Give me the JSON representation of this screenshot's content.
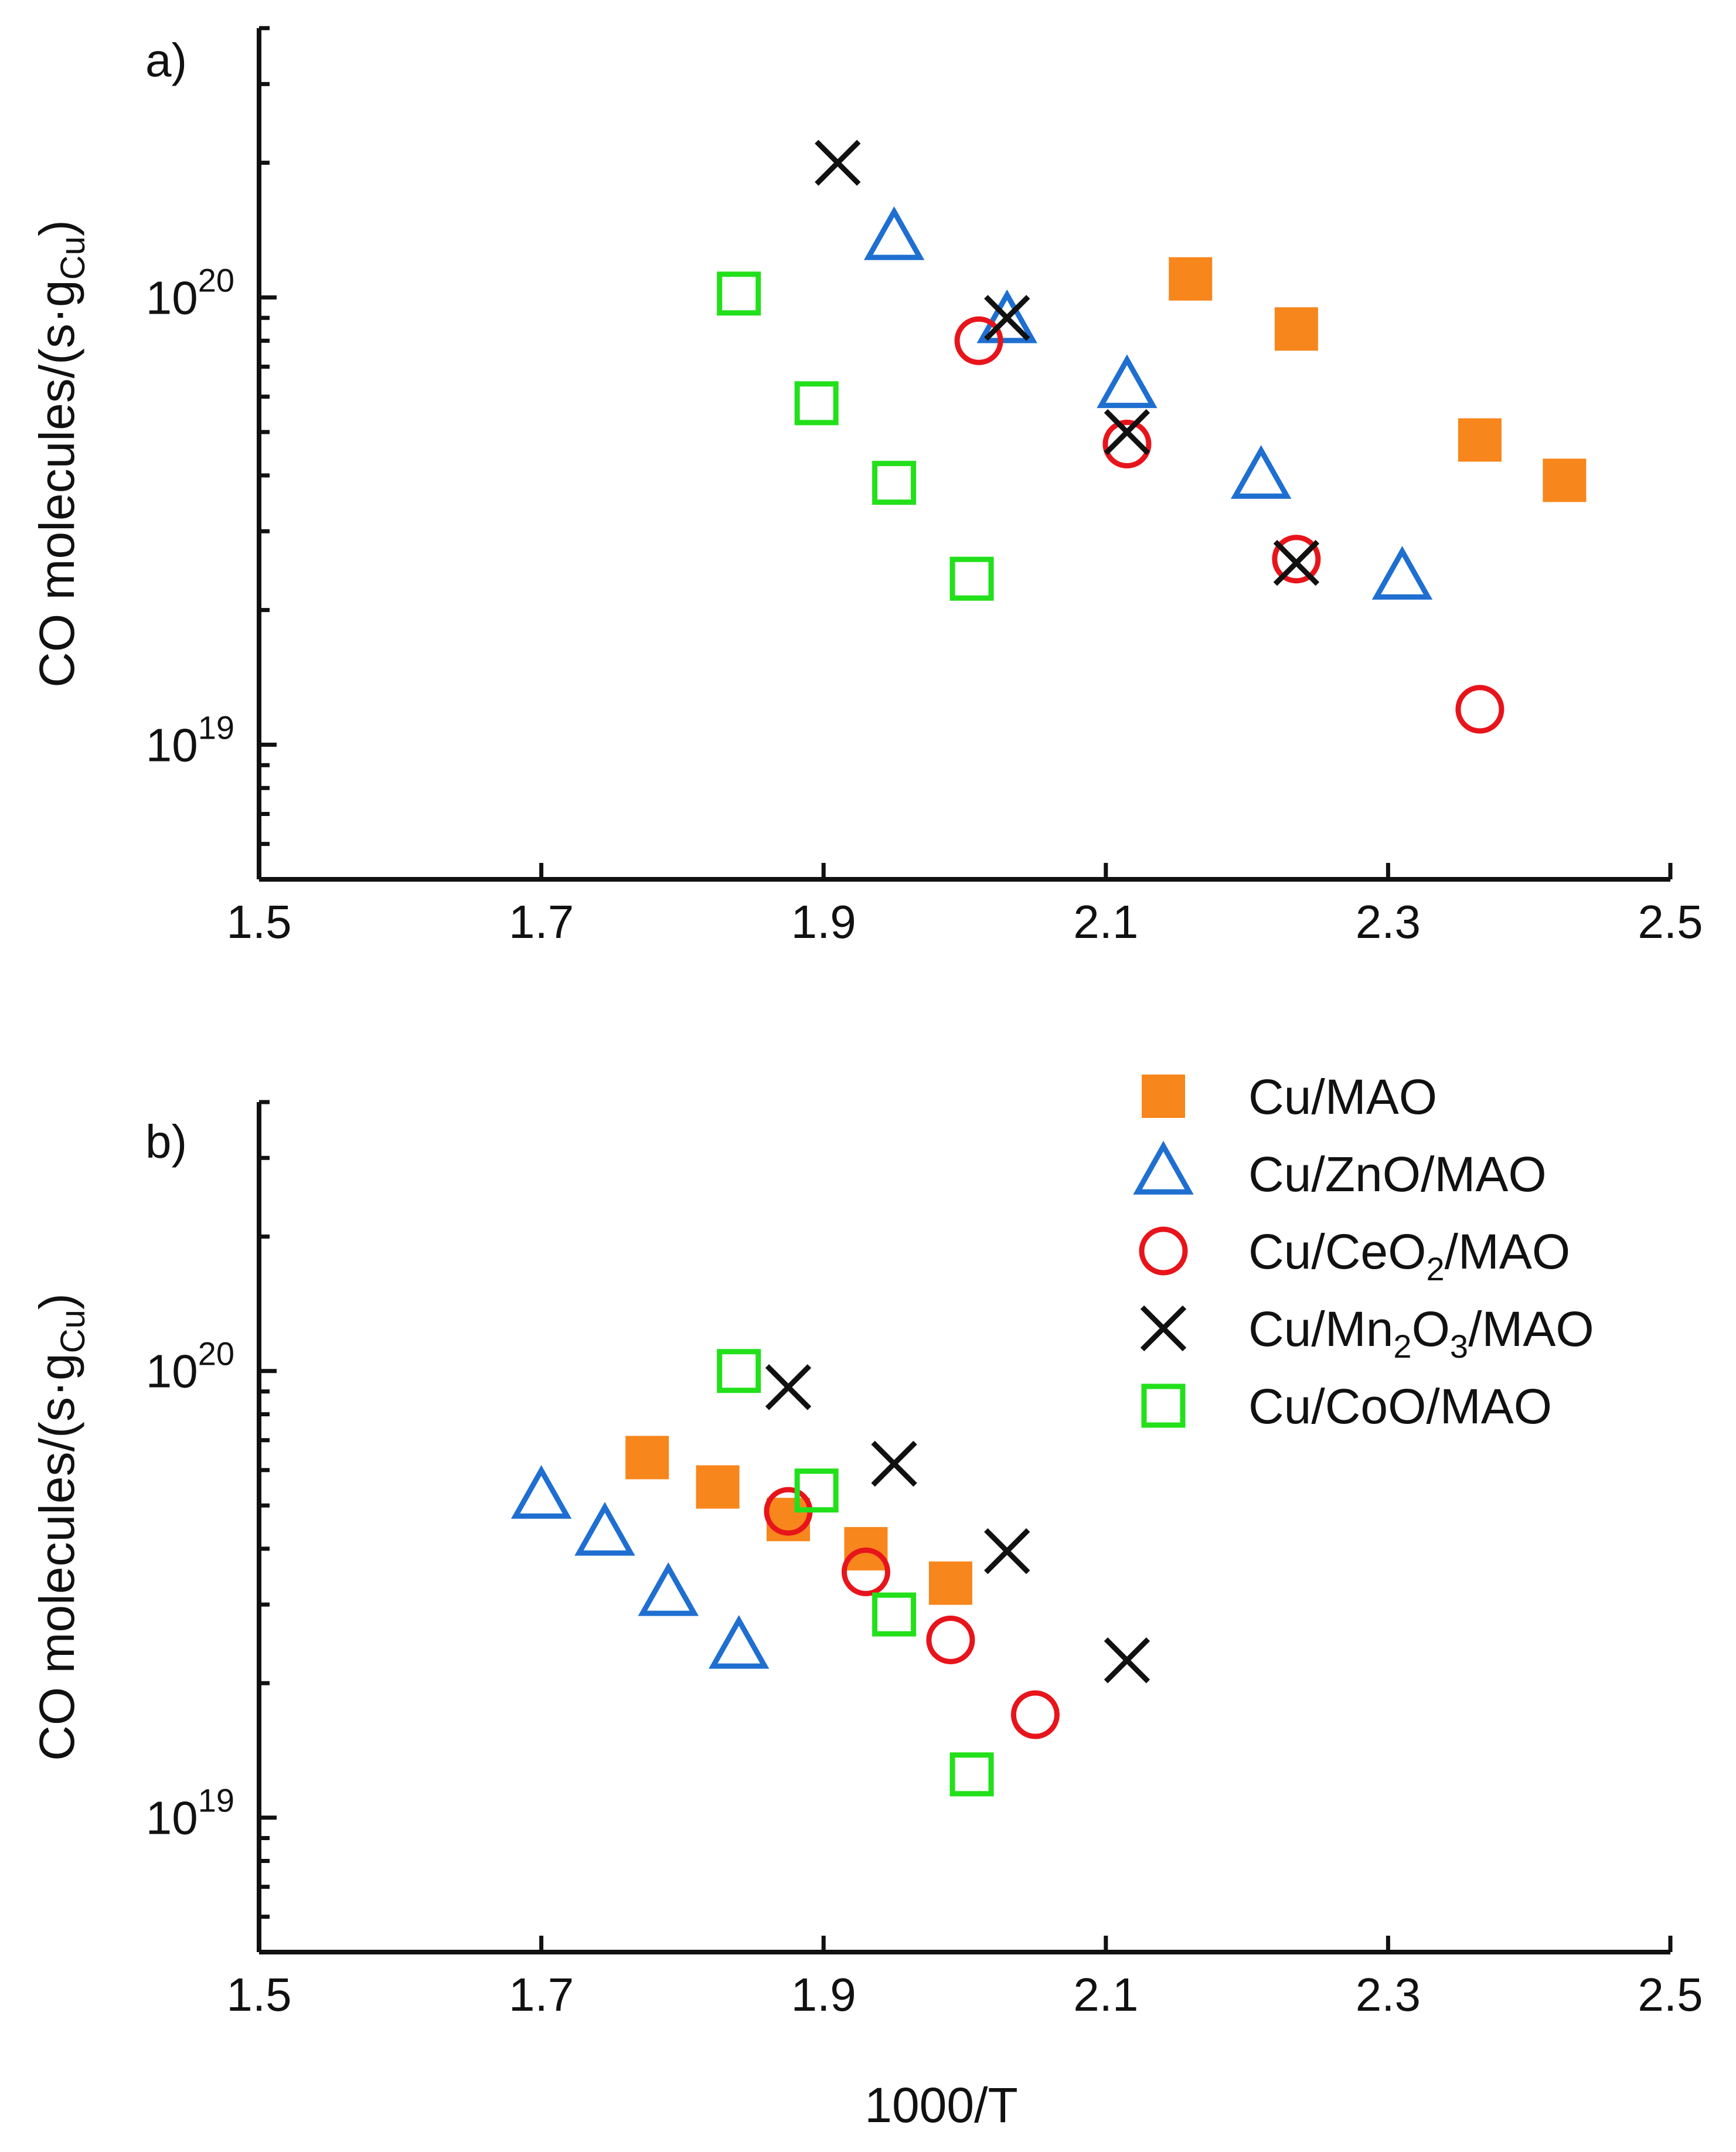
{
  "chart_data": [
    {
      "type": "scatter",
      "panel_label": "a)",
      "ylabel": "CO molecules/(s·g",
      "ylabel_sub": "Cu",
      "ylabel_close": ")",
      "xlabel": "",
      "yscale": "log",
      "xlim": [
        1.5,
        2.5
      ],
      "ylim": [
        5e+18,
        4e+20
      ],
      "x_ticks": [
        1.5,
        1.7,
        1.9,
        2.1,
        2.3,
        2.5
      ],
      "x_tick_labels": [
        "1.5",
        "1.7",
        "1.9",
        "2.1",
        "2.3",
        "2.5"
      ],
      "y_major_ticks": [
        {
          "value": 1e+19,
          "base": "10",
          "exp": "19"
        },
        {
          "value": 1e+20,
          "base": "10",
          "exp": "20"
        }
      ],
      "series": [
        {
          "name": "Cu/MAO",
          "marker": "filled-square",
          "color": "#f7861c",
          "points": [
            [
              2.16,
              1.1e+20
            ],
            [
              2.235,
              8.5e+19
            ],
            [
              2.365,
              4.8e+19
            ],
            [
              2.425,
              3.9e+19
            ]
          ]
        },
        {
          "name": "Cu/ZnO/MAO",
          "marker": "open-triangle",
          "color": "#1f6fd1",
          "points": [
            [
              1.95,
              1.35e+20
            ],
            [
              2.03,
              8.8e+19
            ],
            [
              2.115,
              6.3e+19
            ],
            [
              2.21,
              3.95e+19
            ],
            [
              2.31,
              2.35e+19
            ]
          ]
        },
        {
          "name": "Cu/CeO2/MAO",
          "marker": "open-circle",
          "color": "#e8141b",
          "points": [
            [
              2.01,
              8e+19
            ],
            [
              2.115,
              4.7e+19
            ],
            [
              2.235,
              2.6e+19
            ],
            [
              2.365,
              1.2e+19
            ]
          ]
        },
        {
          "name": "Cu/Mn2O3/MAO",
          "marker": "cross",
          "color": "#111111",
          "points": [
            [
              1.91,
              2e+20
            ],
            [
              2.03,
              9e+19
            ],
            [
              2.115,
              5e+19
            ],
            [
              2.235,
              2.55e+19
            ]
          ]
        },
        {
          "name": "Cu/CoO/MAO",
          "marker": "open-square",
          "color": "#22e01a",
          "points": [
            [
              1.84,
              1.02e+20
            ],
            [
              1.895,
              5.8e+19
            ],
            [
              1.95,
              3.85e+19
            ],
            [
              2.005,
              2.35e+19
            ]
          ]
        }
      ]
    },
    {
      "type": "scatter",
      "panel_label": "b)",
      "ylabel": "CO molecules/(s·g",
      "ylabel_sub": "Cu",
      "ylabel_close": ")",
      "xlabel": "1000/T",
      "yscale": "log",
      "xlim": [
        1.5,
        2.5
      ],
      "ylim": [
        5e+18,
        4e+20
      ],
      "x_ticks": [
        1.5,
        1.7,
        1.9,
        2.1,
        2.3,
        2.5
      ],
      "x_tick_labels": [
        "1.5",
        "1.7",
        "1.9",
        "2.1",
        "2.3",
        "2.5"
      ],
      "y_major_ticks": [
        {
          "value": 1e+19,
          "base": "10",
          "exp": "19"
        },
        {
          "value": 1e+20,
          "base": "10",
          "exp": "20"
        }
      ],
      "legend": {
        "placement": "top-right",
        "entries": [
          {
            "series": "Cu/MAO",
            "parts": [
              [
                "Cu/MAO",
                ""
              ]
            ]
          },
          {
            "series": "Cu/ZnO/MAO",
            "parts": [
              [
                "Cu/ZnO/MAO",
                ""
              ]
            ]
          },
          {
            "series": "Cu/CeO2/MAO",
            "parts": [
              [
                "Cu/CeO",
                ""
              ],
              [
                "2",
                "sub"
              ],
              [
                "/MAO",
                ""
              ]
            ]
          },
          {
            "series": "Cu/Mn2O3/MAO",
            "parts": [
              [
                "Cu/Mn",
                ""
              ],
              [
                "2",
                "sub"
              ],
              [
                "O",
                ""
              ],
              [
                "3",
                "sub"
              ],
              [
                "/MAO",
                ""
              ]
            ]
          },
          {
            "series": "Cu/CoO/MAO",
            "parts": [
              [
                "Cu/CoO/MAO",
                ""
              ]
            ]
          }
        ]
      },
      "series": [
        {
          "name": "Cu/MAO",
          "marker": "filled-square",
          "color": "#f7861c",
          "points": [
            [
              1.775,
              6.4e+19
            ],
            [
              1.825,
              5.5e+19
            ],
            [
              1.875,
              4.65e+19
            ],
            [
              1.93,
              4e+19
            ],
            [
              1.99,
              3.35e+19
            ]
          ]
        },
        {
          "name": "Cu/ZnO/MAO",
          "marker": "open-triangle",
          "color": "#1f6fd1",
          "points": [
            [
              1.7,
              5.2e+19
            ],
            [
              1.745,
              4.3e+19
            ],
            [
              1.79,
              3.15e+19
            ],
            [
              1.84,
              2.4e+19
            ]
          ]
        },
        {
          "name": "Cu/CeO2/MAO",
          "marker": "open-circle",
          "color": "#e8141b",
          "points": [
            [
              1.875,
              4.85e+19
            ],
            [
              1.93,
              3.55e+19
            ],
            [
              1.99,
              2.5e+19
            ],
            [
              2.05,
              1.7e+19
            ]
          ]
        },
        {
          "name": "Cu/Mn2O3/MAO",
          "marker": "cross",
          "color": "#111111",
          "points": [
            [
              1.875,
              9.2e+19
            ],
            [
              1.95,
              6.2e+19
            ],
            [
              2.03,
              3.95e+19
            ],
            [
              2.115,
              2.25e+19
            ]
          ]
        },
        {
          "name": "Cu/CoO/MAO",
          "marker": "open-square",
          "color": "#22e01a",
          "points": [
            [
              1.84,
              1e+20
            ],
            [
              1.895,
              5.4e+19
            ],
            [
              1.95,
              2.85e+19
            ],
            [
              2.005,
              1.25e+19
            ]
          ]
        }
      ]
    }
  ]
}
